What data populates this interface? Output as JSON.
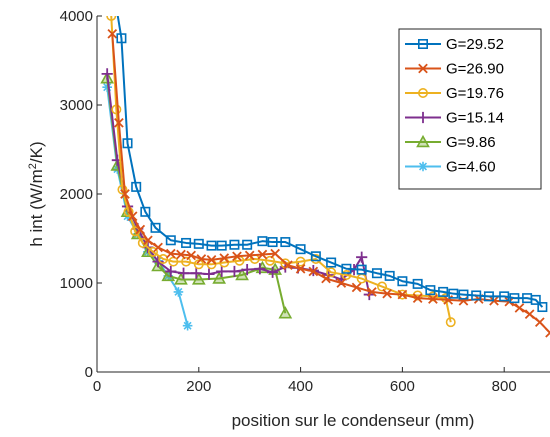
{
  "chart_data": {
    "type": "line",
    "title": "",
    "xlabel": "position sur le condenseur (mm)",
    "ylabel_main": "h int (W/m",
    "ylabel_sup": "2",
    "ylabel_tail": "/K)",
    "xlim": [
      0,
      890
    ],
    "ylim": [
      0,
      4000
    ],
    "xticks": [
      0,
      200,
      400,
      600,
      800
    ],
    "yticks": [
      0,
      1000,
      2000,
      3000,
      4000
    ],
    "grid": false,
    "legend_position": "top-right",
    "series": [
      {
        "name": "G=29.52",
        "color": "#0072BD",
        "marker": "square",
        "x": [
          38,
          48,
          60,
          77,
          95,
          115,
          145,
          175,
          200,
          225,
          245,
          270,
          295,
          325,
          345,
          370,
          400,
          430,
          460,
          490,
          520,
          550,
          575,
          600,
          630,
          655,
          680,
          700,
          720,
          745,
          770,
          800,
          820,
          845,
          862,
          875
        ],
        "y": [
          4100,
          3750,
          2570,
          2080,
          1800,
          1620,
          1480,
          1450,
          1440,
          1420,
          1420,
          1430,
          1430,
          1470,
          1460,
          1460,
          1380,
          1300,
          1230,
          1160,
          1150,
          1110,
          1080,
          1020,
          990,
          920,
          900,
          880,
          870,
          860,
          850,
          850,
          830,
          830,
          810,
          730
        ]
      },
      {
        "name": "G=26.90",
        "color": "#D95319",
        "marker": "x",
        "x": [
          30,
          43,
          55,
          70,
          85,
          100,
          120,
          145,
          165,
          185,
          205,
          225,
          250,
          275,
          300,
          325,
          350,
          375,
          400,
          425,
          450,
          480,
          510,
          540,
          570,
          600,
          630,
          660,
          690,
          720,
          750,
          780,
          810,
          830,
          850,
          870,
          890
        ],
        "y": [
          3800,
          2800,
          2000,
          1750,
          1600,
          1480,
          1400,
          1330,
          1320,
          1310,
          1270,
          1260,
          1280,
          1300,
          1310,
          1320,
          1330,
          1200,
          1160,
          1130,
          1050,
          1000,
          950,
          900,
          880,
          870,
          830,
          820,
          810,
          800,
          820,
          800,
          790,
          720,
          650,
          560,
          440
        ]
      },
      {
        "name": "G=19.76",
        "color": "#EDB120",
        "marker": "circle",
        "x": [
          28,
          38,
          50,
          62,
          75,
          90,
          110,
          130,
          150,
          175,
          200,
          225,
          250,
          280,
          310,
          340,
          370,
          400,
          430,
          460,
          490,
          520,
          560,
          600,
          630,
          660,
          685,
          695
        ],
        "y": [
          4000,
          2950,
          2050,
          1800,
          1580,
          1450,
          1350,
          1270,
          1240,
          1240,
          1210,
          1210,
          1230,
          1250,
          1270,
          1250,
          1220,
          1240,
          1270,
          1120,
          1090,
          1050,
          960,
          870,
          860,
          850,
          830,
          560
        ]
      },
      {
        "name": "G=15.14",
        "color": "#7E2F8E",
        "marker": "plus",
        "x": [
          20,
          40,
          60,
          80,
          100,
          120,
          145,
          170,
          195,
          220,
          245,
          270,
          295,
          320,
          345,
          370,
          395,
          425,
          455,
          480,
          505,
          520,
          535
        ],
        "y": [
          3350,
          2380,
          1860,
          1610,
          1400,
          1240,
          1130,
          1110,
          1110,
          1100,
          1130,
          1130,
          1150,
          1160,
          1120,
          1180,
          1170,
          1140,
          1090,
          1040,
          1150,
          1290,
          870
        ]
      },
      {
        "name": "G=9.86",
        "color": "#77AC30",
        "marker": "triangle",
        "x": [
          20,
          40,
          60,
          80,
          100,
          120,
          140,
          165,
          200,
          240,
          285,
          325,
          350,
          370
        ],
        "y": [
          3300,
          2320,
          1800,
          1550,
          1350,
          1190,
          1080,
          1040,
          1040,
          1050,
          1090,
          1170,
          1150,
          660
        ]
      },
      {
        "name": "G=4.60",
        "color": "#4DBEEE",
        "marker": "asterisk",
        "x": [
          20,
          40,
          60,
          80,
          100,
          120,
          140,
          160,
          178
        ],
        "y": [
          3200,
          2280,
          1750,
          1550,
          1350,
          1250,
          1080,
          900,
          520
        ]
      }
    ]
  }
}
